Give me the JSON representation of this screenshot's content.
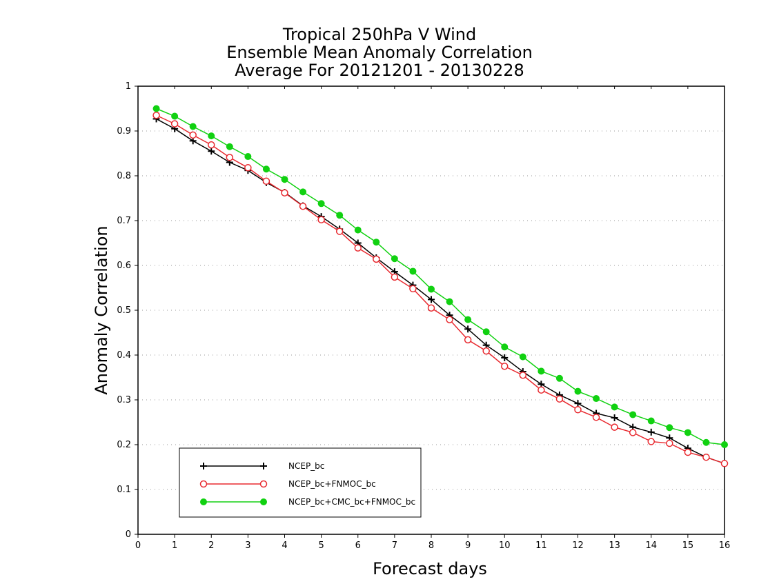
{
  "chart_data": {
    "type": "line",
    "title": [
      "Tropical 250hPa V Wind",
      "Ensemble Mean Anomaly Correlation",
      "Average For 20121201 - 20130228"
    ],
    "xlabel": "Forecast days",
    "ylabel": "Anomaly Correlation",
    "xlim": [
      0,
      16
    ],
    "ylim": [
      0,
      1
    ],
    "x_ticks": [
      0,
      1,
      2,
      3,
      4,
      5,
      6,
      7,
      8,
      9,
      10,
      11,
      12,
      13,
      14,
      15,
      16
    ],
    "y_ticks": [
      0,
      0.1,
      0.2,
      0.3,
      0.4,
      0.5,
      0.6,
      0.7,
      0.8,
      0.9,
      1
    ],
    "y_tick_labels": [
      "0",
      "0.1",
      "0.2",
      "0.3",
      "0.4",
      "0.5",
      "0.6",
      "0.7",
      "0.8",
      "0.9",
      "1"
    ],
    "grid": "horizontal dotted",
    "legend_position": "bottom-left",
    "x": [
      0.5,
      1,
      1.5,
      2,
      2.5,
      3,
      3.5,
      4,
      4.5,
      5,
      5.5,
      6,
      6.5,
      7,
      7.5,
      8,
      8.5,
      9,
      9.5,
      10,
      10.5,
      11,
      11.5,
      12,
      12.5,
      13,
      13.5,
      14,
      14.5,
      15,
      15.5,
      16
    ],
    "series": [
      {
        "name": "NCEP_bc",
        "color": "#000000",
        "marker": "plus",
        "values": [
          0.927,
          0.905,
          0.878,
          0.855,
          0.83,
          0.812,
          0.785,
          0.763,
          0.733,
          0.709,
          0.681,
          0.65,
          0.617,
          0.586,
          0.556,
          0.524,
          0.489,
          0.458,
          0.422,
          0.394,
          0.363,
          0.335,
          0.311,
          0.292,
          0.27,
          0.26,
          0.239,
          0.228,
          0.215,
          0.192,
          0.172,
          0.158
        ]
      },
      {
        "name": "NCEP_bc+FNMOC_bc",
        "color": "#e8282e",
        "marker": "open-circle",
        "values": [
          0.935,
          0.916,
          0.891,
          0.869,
          0.841,
          0.818,
          0.788,
          0.762,
          0.732,
          0.702,
          0.676,
          0.639,
          0.614,
          0.574,
          0.548,
          0.505,
          0.479,
          0.434,
          0.409,
          0.375,
          0.355,
          0.322,
          0.302,
          0.278,
          0.261,
          0.239,
          0.227,
          0.207,
          0.203,
          0.183,
          0.172,
          0.158
        ]
      },
      {
        "name": "NCEP_bc+CMC_bc+FNMOC_bc",
        "color": "#11d111",
        "marker": "filled-circle",
        "values": [
          0.95,
          0.933,
          0.91,
          0.889,
          0.865,
          0.843,
          0.815,
          0.792,
          0.764,
          0.738,
          0.712,
          0.679,
          0.652,
          0.615,
          0.587,
          0.547,
          0.519,
          0.479,
          0.452,
          0.418,
          0.396,
          0.364,
          0.348,
          0.319,
          0.303,
          0.284,
          0.267,
          0.253,
          0.238,
          0.227,
          0.205,
          0.2
        ]
      }
    ]
  }
}
